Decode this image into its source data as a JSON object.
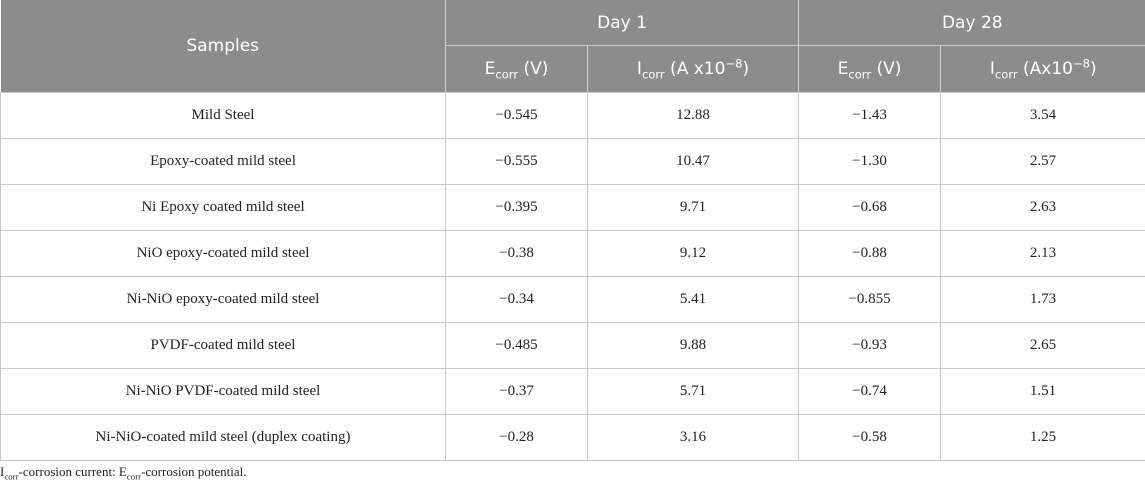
{
  "table": {
    "header": {
      "samples": "Samples",
      "day1": "Day 1",
      "day28": "Day 28",
      "ecorr_e": "E",
      "ecorr_sub": "corr",
      "ecorr_unit": " (V)",
      "icorr_i": "I",
      "icorr_sub": "corr",
      "icorr_unit_day1": " (A x10",
      "icorr_unit_day28": " (Ax10",
      "exp": "−8",
      "close": ")"
    },
    "rows": [
      {
        "sample": "Mild Steel",
        "e1": "−0.545",
        "i1": "12.88",
        "e28": "−1.43",
        "i28": "3.54"
      },
      {
        "sample": "Epoxy-coated mild steel",
        "e1": "−0.555",
        "i1": "10.47",
        "e28": "−1.30",
        "i28": "2.57"
      },
      {
        "sample": "Ni Epoxy coated mild steel",
        "e1": "−0.395",
        "i1": "9.71",
        "e28": "−0.68",
        "i28": "2.63"
      },
      {
        "sample": "NiO epoxy-coated mild steel",
        "e1": "−0.38",
        "i1": "9.12",
        "e28": "−0.88",
        "i28": "2.13"
      },
      {
        "sample": "Ni-NiO epoxy-coated mild steel",
        "e1": "−0.34",
        "i1": "5.41",
        "e28": "−0.855",
        "i28": "1.73"
      },
      {
        "sample": "PVDF-coated mild steel",
        "e1": "−0.485",
        "i1": "9.88",
        "e28": "−0.93",
        "i28": "2.65"
      },
      {
        "sample": "Ni-NiO PVDF-coated mild steel",
        "e1": "−0.37",
        "i1": "5.71",
        "e28": "−0.74",
        "i28": "1.51"
      },
      {
        "sample": "Ni-NiO-coated mild steel (duplex coating)",
        "e1": "−0.28",
        "i1": "3.16",
        "e28": "−0.58",
        "i28": "1.25"
      }
    ]
  },
  "footnote": {
    "i": "I",
    "i_sub": "corr",
    "i_text": "-corrosion current: E",
    "e_sub": "corr",
    "e_text": "-corrosion potential."
  }
}
